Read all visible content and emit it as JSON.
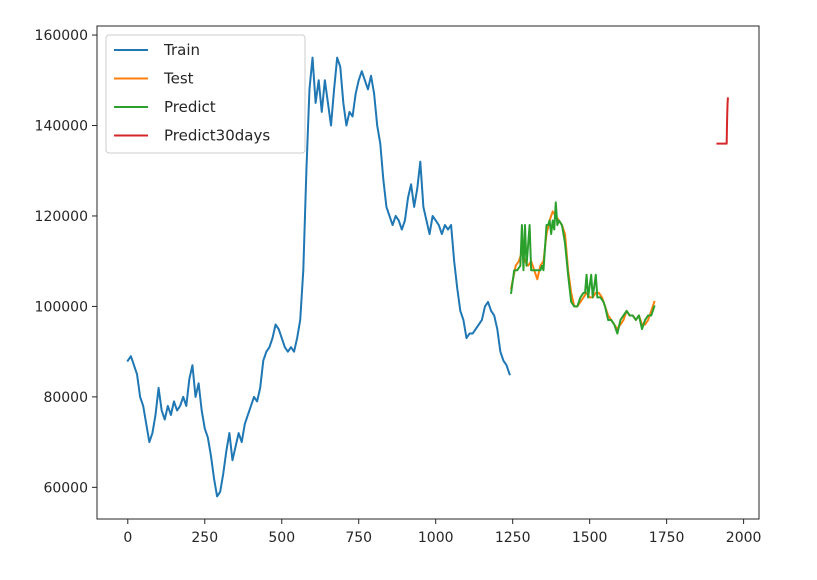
{
  "chart_data": {
    "type": "line",
    "title": "",
    "xlabel": "",
    "ylabel": "",
    "xlim": [
      -100,
      2050
    ],
    "ylim": [
      53000,
      162000
    ],
    "grid": false,
    "legend_position": "top-left",
    "x_ticks": [
      {
        "value": 0,
        "label": "0"
      },
      {
        "value": 250,
        "label": "250"
      },
      {
        "value": 500,
        "label": "500"
      },
      {
        "value": 750,
        "label": "750"
      },
      {
        "value": 1000,
        "label": "1000"
      },
      {
        "value": 1250,
        "label": "1250"
      },
      {
        "value": 1500,
        "label": "1500"
      },
      {
        "value": 1750,
        "label": "1750"
      },
      {
        "value": 2000,
        "label": "2000"
      }
    ],
    "y_ticks": [
      {
        "value": 60000,
        "label": "60000"
      },
      {
        "value": 80000,
        "label": "80000"
      },
      {
        "value": 100000,
        "label": "100000"
      },
      {
        "value": 120000,
        "label": "120000"
      },
      {
        "value": 140000,
        "label": "140000"
      },
      {
        "value": 160000,
        "label": "160000"
      }
    ],
    "series": [
      {
        "name": "Train",
        "color": "#1f77b4",
        "points": [
          [
            0,
            88000
          ],
          [
            10,
            89000
          ],
          [
            20,
            87000
          ],
          [
            30,
            85000
          ],
          [
            40,
            80000
          ],
          [
            50,
            78000
          ],
          [
            60,
            74000
          ],
          [
            70,
            70000
          ],
          [
            80,
            72000
          ],
          [
            90,
            76000
          ],
          [
            100,
            82000
          ],
          [
            110,
            77000
          ],
          [
            120,
            75000
          ],
          [
            130,
            78000
          ],
          [
            140,
            76000
          ],
          [
            150,
            79000
          ],
          [
            160,
            77000
          ],
          [
            170,
            78000
          ],
          [
            180,
            80000
          ],
          [
            190,
            78000
          ],
          [
            200,
            84000
          ],
          [
            210,
            87000
          ],
          [
            220,
            80000
          ],
          [
            230,
            83000
          ],
          [
            240,
            77000
          ],
          [
            250,
            73000
          ],
          [
            260,
            71000
          ],
          [
            270,
            67000
          ],
          [
            280,
            62000
          ],
          [
            290,
            58000
          ],
          [
            300,
            59000
          ],
          [
            310,
            63000
          ],
          [
            320,
            68000
          ],
          [
            330,
            72000
          ],
          [
            340,
            66000
          ],
          [
            350,
            69000
          ],
          [
            360,
            72000
          ],
          [
            370,
            70000
          ],
          [
            380,
            74000
          ],
          [
            390,
            76000
          ],
          [
            400,
            78000
          ],
          [
            410,
            80000
          ],
          [
            420,
            79000
          ],
          [
            430,
            82000
          ],
          [
            440,
            88000
          ],
          [
            450,
            90000
          ],
          [
            460,
            91000
          ],
          [
            470,
            93000
          ],
          [
            480,
            96000
          ],
          [
            490,
            95000
          ],
          [
            500,
            93000
          ],
          [
            510,
            91000
          ],
          [
            520,
            90000
          ],
          [
            530,
            91000
          ],
          [
            540,
            90000
          ],
          [
            550,
            93000
          ],
          [
            560,
            97000
          ],
          [
            570,
            108000
          ],
          [
            580,
            130000
          ],
          [
            590,
            148000
          ],
          [
            600,
            155000
          ],
          [
            610,
            145000
          ],
          [
            620,
            150000
          ],
          [
            630,
            143000
          ],
          [
            640,
            150000
          ],
          [
            650,
            145000
          ],
          [
            660,
            140000
          ],
          [
            670,
            148000
          ],
          [
            680,
            155000
          ],
          [
            690,
            153000
          ],
          [
            700,
            145000
          ],
          [
            710,
            140000
          ],
          [
            720,
            143000
          ],
          [
            730,
            142000
          ],
          [
            740,
            147000
          ],
          [
            750,
            150000
          ],
          [
            760,
            152000
          ],
          [
            770,
            150000
          ],
          [
            780,
            148000
          ],
          [
            790,
            151000
          ],
          [
            800,
            147000
          ],
          [
            810,
            140000
          ],
          [
            820,
            136000
          ],
          [
            830,
            128000
          ],
          [
            840,
            122000
          ],
          [
            850,
            120000
          ],
          [
            860,
            118000
          ],
          [
            870,
            120000
          ],
          [
            880,
            119000
          ],
          [
            890,
            117000
          ],
          [
            900,
            119000
          ],
          [
            910,
            124000
          ],
          [
            920,
            127000
          ],
          [
            930,
            122000
          ],
          [
            940,
            126000
          ],
          [
            950,
            132000
          ],
          [
            960,
            122000
          ],
          [
            970,
            119000
          ],
          [
            980,
            116000
          ],
          [
            990,
            120000
          ],
          [
            1000,
            119000
          ],
          [
            1010,
            118000
          ],
          [
            1020,
            116000
          ],
          [
            1030,
            118000
          ],
          [
            1040,
            117000
          ],
          [
            1050,
            118000
          ],
          [
            1060,
            110000
          ],
          [
            1070,
            104000
          ],
          [
            1080,
            99000
          ],
          [
            1090,
            97000
          ],
          [
            1100,
            93000
          ],
          [
            1110,
            94000
          ],
          [
            1120,
            94000
          ],
          [
            1130,
            95000
          ],
          [
            1140,
            96000
          ],
          [
            1150,
            97000
          ],
          [
            1160,
            100000
          ],
          [
            1170,
            101000
          ],
          [
            1180,
            99000
          ],
          [
            1190,
            98000
          ],
          [
            1200,
            95000
          ],
          [
            1210,
            90000
          ],
          [
            1220,
            88000
          ],
          [
            1230,
            87000
          ],
          [
            1240,
            85000
          ]
        ]
      },
      {
        "name": "Test",
        "color": "#ff7f0e",
        "points": [
          [
            1245,
            104000
          ],
          [
            1260,
            109000
          ],
          [
            1270,
            110000
          ],
          [
            1280,
            112000
          ],
          [
            1290,
            110000
          ],
          [
            1300,
            109000
          ],
          [
            1310,
            110000
          ],
          [
            1320,
            108000
          ],
          [
            1330,
            106000
          ],
          [
            1340,
            109000
          ],
          [
            1350,
            110000
          ],
          [
            1360,
            116000
          ],
          [
            1370,
            119000
          ],
          [
            1380,
            121000
          ],
          [
            1390,
            120000
          ],
          [
            1400,
            119000
          ],
          [
            1410,
            118000
          ],
          [
            1420,
            116000
          ],
          [
            1430,
            108000
          ],
          [
            1440,
            103000
          ],
          [
            1450,
            100000
          ],
          [
            1460,
            100000
          ],
          [
            1470,
            101000
          ],
          [
            1480,
            102000
          ],
          [
            1490,
            103000
          ],
          [
            1500,
            102000
          ],
          [
            1510,
            102000
          ],
          [
            1520,
            103000
          ],
          [
            1530,
            103000
          ],
          [
            1540,
            102000
          ],
          [
            1550,
            100000
          ],
          [
            1560,
            98000
          ],
          [
            1570,
            97000
          ],
          [
            1580,
            96000
          ],
          [
            1590,
            95000
          ],
          [
            1600,
            96000
          ],
          [
            1610,
            97000
          ],
          [
            1620,
            99000
          ],
          [
            1630,
            98000
          ],
          [
            1640,
            98000
          ],
          [
            1650,
            97000
          ],
          [
            1660,
            98000
          ],
          [
            1670,
            96000
          ],
          [
            1680,
            96000
          ],
          [
            1690,
            97000
          ],
          [
            1700,
            99000
          ],
          [
            1710,
            101000
          ]
        ]
      },
      {
        "name": "Predict",
        "color": "#2ca02c",
        "points": [
          [
            1245,
            103000
          ],
          [
            1255,
            108000
          ],
          [
            1265,
            108000
          ],
          [
            1275,
            109000
          ],
          [
            1280,
            118000
          ],
          [
            1285,
            108000
          ],
          [
            1290,
            118000
          ],
          [
            1295,
            109000
          ],
          [
            1305,
            118000
          ],
          [
            1310,
            108000
          ],
          [
            1320,
            108000
          ],
          [
            1330,
            108000
          ],
          [
            1340,
            108000
          ],
          [
            1345,
            109000
          ],
          [
            1350,
            108000
          ],
          [
            1360,
            118000
          ],
          [
            1365,
            118000
          ],
          [
            1370,
            119000
          ],
          [
            1375,
            116000
          ],
          [
            1380,
            119000
          ],
          [
            1385,
            117000
          ],
          [
            1390,
            123000
          ],
          [
            1395,
            118000
          ],
          [
            1400,
            119000
          ],
          [
            1410,
            118000
          ],
          [
            1420,
            114000
          ],
          [
            1430,
            107000
          ],
          [
            1440,
            101000
          ],
          [
            1450,
            100000
          ],
          [
            1460,
            100000
          ],
          [
            1470,
            102000
          ],
          [
            1480,
            103000
          ],
          [
            1485,
            103000
          ],
          [
            1490,
            107000
          ],
          [
            1495,
            102000
          ],
          [
            1505,
            107000
          ],
          [
            1510,
            102000
          ],
          [
            1520,
            107000
          ],
          [
            1525,
            102000
          ],
          [
            1535,
            102000
          ],
          [
            1545,
            101000
          ],
          [
            1550,
            100000
          ],
          [
            1560,
            97000
          ],
          [
            1570,
            97000
          ],
          [
            1580,
            96000
          ],
          [
            1590,
            94000
          ],
          [
            1600,
            97000
          ],
          [
            1610,
            98000
          ],
          [
            1620,
            99000
          ],
          [
            1630,
            98000
          ],
          [
            1640,
            98000
          ],
          [
            1650,
            97000
          ],
          [
            1660,
            98000
          ],
          [
            1670,
            95000
          ],
          [
            1680,
            97000
          ],
          [
            1690,
            98000
          ],
          [
            1700,
            98000
          ],
          [
            1710,
            100000
          ]
        ]
      },
      {
        "name": "Predict30days",
        "color": "#d62728",
        "points": [
          [
            1915,
            136000
          ],
          [
            1930,
            136000
          ],
          [
            1940,
            136000
          ],
          [
            1945,
            136000
          ],
          [
            1946,
            140000
          ],
          [
            1947,
            143000
          ],
          [
            1948,
            145000
          ],
          [
            1949,
            146000
          ]
        ]
      }
    ]
  }
}
